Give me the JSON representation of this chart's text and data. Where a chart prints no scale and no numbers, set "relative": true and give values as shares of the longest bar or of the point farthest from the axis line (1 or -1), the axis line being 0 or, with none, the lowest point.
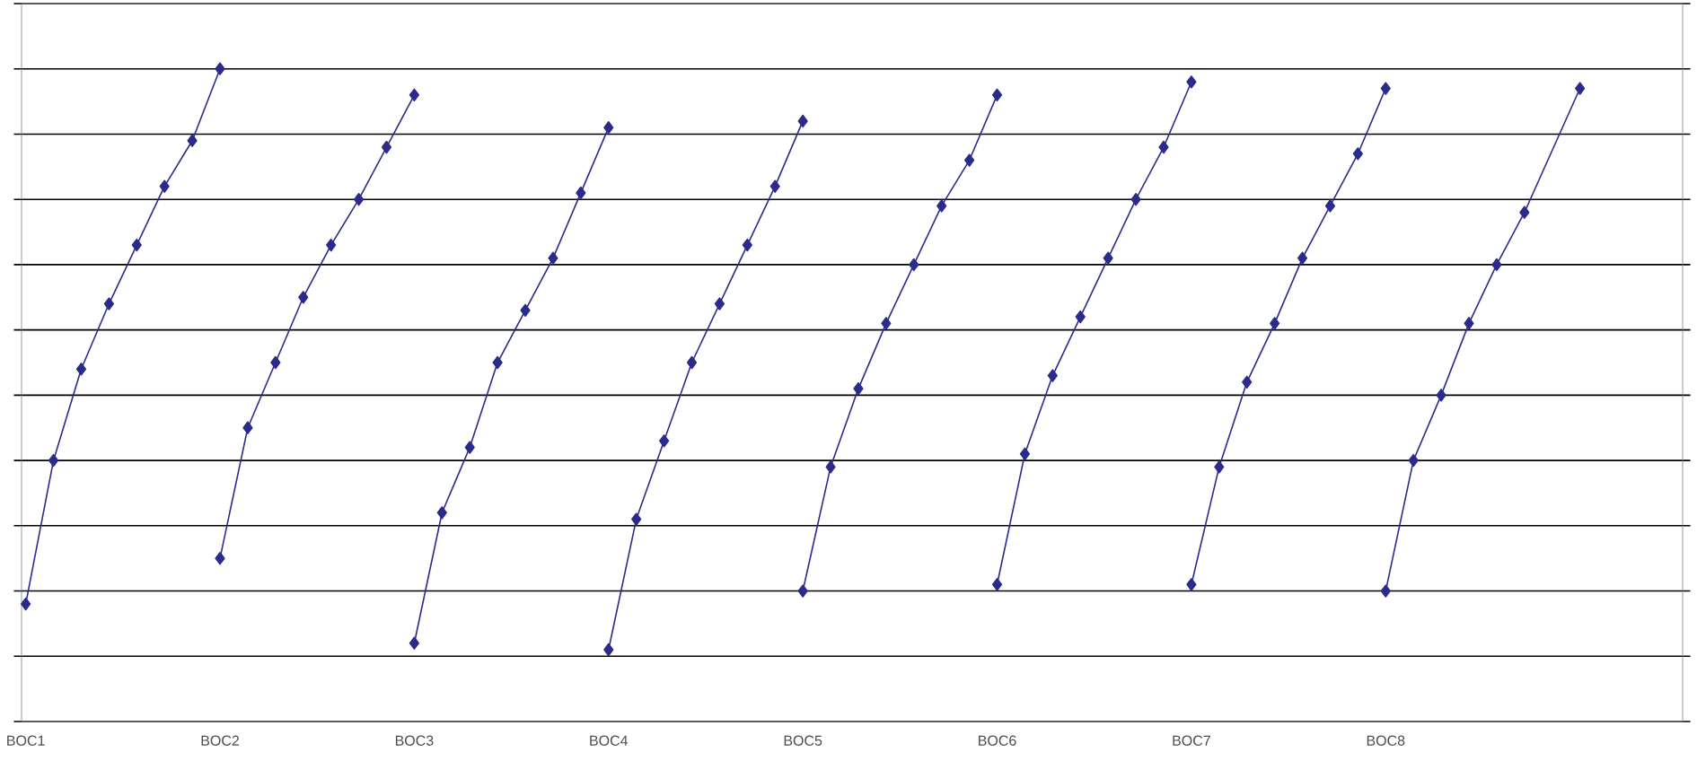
{
  "chart_data": {
    "type": "line",
    "relative": true,
    "grid": "y",
    "marker": "diamond",
    "line_style": "solid",
    "categories": [
      "BOC1",
      null,
      null,
      null,
      null,
      null,
      null,
      "BOC2",
      null,
      null,
      null,
      null,
      null,
      null,
      "BOC3",
      null,
      null,
      null,
      null,
      null,
      null,
      "BOC4",
      null,
      null,
      null,
      null,
      null,
      null,
      "BOC5",
      null,
      null,
      null,
      null,
      null,
      null,
      "BOC6",
      null,
      null,
      null,
      null,
      null,
      null,
      "BOC7",
      null,
      null,
      null,
      null,
      null,
      null,
      "BOC8",
      null,
      null,
      null,
      null,
      null,
      null,
      null
    ],
    "series": [
      {
        "color": "#2b2b8c",
        "values": [
          0.18,
          0.4,
          0.54,
          0.64,
          0.73,
          0.82,
          0.89,
          1.0,
          null,
          null,
          null,
          null,
          null,
          null,
          null,
          null,
          null,
          null,
          null,
          null,
          null,
          null,
          null,
          null,
          null,
          null,
          null,
          null,
          null,
          null,
          null,
          null,
          null,
          null,
          null,
          null,
          null,
          null,
          null,
          null,
          null,
          null,
          null,
          null,
          null,
          null,
          null,
          null,
          null,
          null,
          null,
          null,
          null,
          null,
          null,
          null,
          null
        ]
      },
      {
        "color": "#2b2b8c",
        "values": [
          null,
          null,
          null,
          null,
          null,
          null,
          null,
          0.25,
          0.45,
          0.55,
          0.65,
          0.73,
          0.8,
          0.88,
          0.96,
          null,
          null,
          null,
          null,
          null,
          null,
          null,
          null,
          null,
          null,
          null,
          null,
          null,
          null,
          null,
          null,
          null,
          null,
          null,
          null,
          null,
          null,
          null,
          null,
          null,
          null,
          null,
          null,
          null,
          null,
          null,
          null,
          null,
          null,
          null,
          null,
          null,
          null,
          null,
          null,
          null,
          null
        ]
      },
      {
        "color": "#2b2b8c",
        "values": [
          null,
          null,
          null,
          null,
          null,
          null,
          null,
          null,
          null,
          null,
          null,
          null,
          null,
          null,
          0.12,
          0.32,
          0.42,
          0.55,
          0.63,
          0.71,
          0.81,
          0.91,
          null,
          null,
          null,
          null,
          null,
          null,
          null,
          null,
          null,
          null,
          null,
          null,
          null,
          null,
          null,
          null,
          null,
          null,
          null,
          null,
          null,
          null,
          null,
          null,
          null,
          null,
          null,
          null,
          null,
          null,
          null,
          null,
          null,
          null,
          null
        ]
      },
      {
        "color": "#2b2b8c",
        "values": [
          null,
          null,
          null,
          null,
          null,
          null,
          null,
          null,
          null,
          null,
          null,
          null,
          null,
          null,
          null,
          null,
          null,
          null,
          null,
          null,
          null,
          0.11,
          0.31,
          0.43,
          0.55,
          0.64,
          0.73,
          0.82,
          0.92,
          null,
          null,
          null,
          null,
          null,
          null,
          null,
          null,
          null,
          null,
          null,
          null,
          null,
          null,
          null,
          null,
          null,
          null,
          null,
          null,
          null,
          null,
          null,
          null,
          null,
          null,
          null,
          null
        ]
      },
      {
        "color": "#2b2b8c",
        "values": [
          null,
          null,
          null,
          null,
          null,
          null,
          null,
          null,
          null,
          null,
          null,
          null,
          null,
          null,
          null,
          null,
          null,
          null,
          null,
          null,
          null,
          null,
          null,
          null,
          null,
          null,
          null,
          null,
          0.2,
          0.39,
          0.51,
          0.61,
          0.7,
          0.79,
          0.86,
          0.96,
          null,
          null,
          null,
          null,
          null,
          null,
          null,
          null,
          null,
          null,
          null,
          null,
          null,
          null,
          null,
          null,
          null,
          null,
          null,
          null,
          null
        ]
      },
      {
        "color": "#2b2b8c",
        "values": [
          null,
          null,
          null,
          null,
          null,
          null,
          null,
          null,
          null,
          null,
          null,
          null,
          null,
          null,
          null,
          null,
          null,
          null,
          null,
          null,
          null,
          null,
          null,
          null,
          null,
          null,
          null,
          null,
          null,
          null,
          null,
          null,
          null,
          null,
          null,
          0.21,
          0.41,
          0.53,
          0.62,
          0.71,
          0.8,
          0.88,
          0.98,
          null,
          null,
          null,
          null,
          null,
          null,
          null,
          null,
          null,
          null,
          null,
          null,
          null,
          null
        ]
      },
      {
        "color": "#2b2b8c",
        "values": [
          null,
          null,
          null,
          null,
          null,
          null,
          null,
          null,
          null,
          null,
          null,
          null,
          null,
          null,
          null,
          null,
          null,
          null,
          null,
          null,
          null,
          null,
          null,
          null,
          null,
          null,
          null,
          null,
          null,
          null,
          null,
          null,
          null,
          null,
          null,
          null,
          null,
          null,
          null,
          null,
          null,
          null,
          0.21,
          0.39,
          0.52,
          0.61,
          0.71,
          0.79,
          0.87,
          0.97,
          null,
          null,
          null,
          null,
          null,
          null,
          null
        ]
      },
      {
        "color": "#2b2b8c",
        "values": [
          null,
          null,
          null,
          null,
          null,
          null,
          null,
          null,
          null,
          null,
          null,
          null,
          null,
          null,
          null,
          null,
          null,
          null,
          null,
          null,
          null,
          null,
          null,
          null,
          null,
          null,
          null,
          null,
          null,
          null,
          null,
          null,
          null,
          null,
          null,
          null,
          null,
          null,
          null,
          null,
          null,
          null,
          null,
          null,
          null,
          null,
          null,
          null,
          null,
          0.2,
          0.4,
          0.5,
          0.61,
          0.7,
          0.78,
          null,
          0.97
        ]
      }
    ]
  }
}
